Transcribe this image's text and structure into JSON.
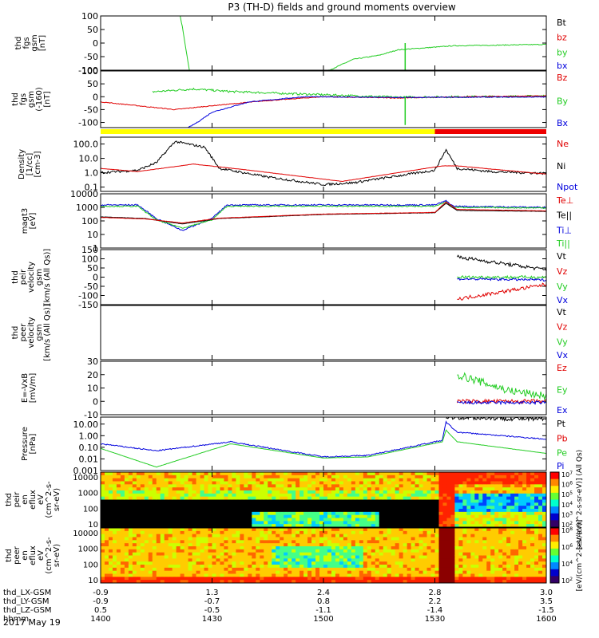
{
  "title": "P3 (TH-D) fields and ground moments overview",
  "colors": {
    "black": "#000000",
    "red": "#e00000",
    "green": "#22cc22",
    "blue": "#0000dd",
    "yellow": "#ffff00",
    "barred": "#ee0000"
  },
  "chart_data": {
    "type": "line",
    "time_axis": {
      "ticks_hhmm": [
        "1400",
        "1430",
        "1500",
        "1530",
        "1600"
      ],
      "date": "2017 May 19",
      "range_hhmm": [
        "1400",
        "1600"
      ],
      "ephemeris": [
        {
          "label": "thd_LX-GSM",
          "values": [
            "-0.9",
            "1.3",
            "2.4",
            "2.8",
            "3.0"
          ]
        },
        {
          "label": "thd_LY-GSM",
          "values": [
            "-0.9",
            "-0.7",
            "0.8",
            "2.2",
            "3.5"
          ]
        },
        {
          "label": "thd_LZ-GSM",
          "values": [
            "0.5",
            "-0.5",
            "-1.1",
            "-1.4",
            "-1.5"
          ]
        },
        {
          "label": "hhmm",
          "values": [
            "1400",
            "1430",
            "1500",
            "1530",
            "1600"
          ]
        }
      ]
    },
    "panels": [
      {
        "id": "fgs-gsm",
        "ylabel": [
          "thd",
          "fgs",
          "gsm",
          "[nT]"
        ],
        "ylim": [
          -100,
          100
        ],
        "yticks": [
          "100",
          "50",
          "0",
          "-50",
          "-100"
        ],
        "series": [
          {
            "name": "Bt",
            "color": "black"
          },
          {
            "name": "bz",
            "color": "red"
          },
          {
            "name": "by",
            "color": "green"
          },
          {
            "name": "bx",
            "color": "blue"
          }
        ]
      },
      {
        "id": "fgs-gse",
        "ylabel": [
          "thd",
          "fgs",
          "gsm",
          "(-160)",
          "[nT]"
        ],
        "ylim": [
          -120,
          100
        ],
        "yticks": [
          "100",
          "50",
          "0",
          "-50",
          "-100"
        ],
        "series": [
          {
            "name": "Bz",
            "color": "red"
          },
          {
            "name": "By",
            "color": "green"
          },
          {
            "name": "Bx",
            "color": "blue"
          }
        ]
      },
      {
        "id": "density",
        "ylabel": [
          "Density",
          "[1/cc]",
          "[cm-3]"
        ],
        "log": true,
        "ylim": [
          0.05,
          300
        ],
        "yticks": [
          "100.0",
          "10.0",
          "1.0",
          "0.1"
        ],
        "series": [
          {
            "name": "Ne",
            "color": "red"
          },
          {
            "name": "Ni",
            "color": "black"
          },
          {
            "name": "Npot",
            "color": "blue"
          }
        ]
      },
      {
        "id": "temperature",
        "ylabel": [
          "magt3",
          "[eV]"
        ],
        "log": true,
        "ylim": [
          1,
          10000
        ],
        "yticks": [
          "10000",
          "1000",
          "100",
          "10",
          "1"
        ],
        "series": [
          {
            "name": "Te⊥",
            "color": "red"
          },
          {
            "name": "Te||",
            "color": "black"
          },
          {
            "name": "Ti⊥",
            "color": "blue"
          },
          {
            "name": "Ti||",
            "color": "green"
          }
        ]
      },
      {
        "id": "peir-velocity",
        "ylabel": [
          "thd",
          "peir",
          "velocity",
          "gsm",
          "[km/s (All Qs)]"
        ],
        "ylim": [
          -150,
          150
        ],
        "yticks": [
          "150",
          "100",
          "50",
          "0",
          "-50",
          "-100",
          "-150"
        ],
        "series": [
          {
            "name": "Vt",
            "color": "black"
          },
          {
            "name": "Vz",
            "color": "red"
          },
          {
            "name": "Vy",
            "color": "green"
          },
          {
            "name": "Vx",
            "color": "blue"
          }
        ]
      },
      {
        "id": "peer-velocity",
        "ylabel": [
          "thd",
          "peer",
          "velocity",
          "gsm",
          "[km/s (All Qs)]"
        ],
        "ylim": [
          0,
          1
        ],
        "yticks": [],
        "series": [
          {
            "name": "Vt",
            "color": "black"
          },
          {
            "name": "Vz",
            "color": "red"
          },
          {
            "name": "Vy",
            "color": "green"
          },
          {
            "name": "Vx",
            "color": "blue"
          }
        ]
      },
      {
        "id": "efield",
        "ylabel": [
          "E=-VxB",
          "[mV/m]"
        ],
        "ylim": [
          -10,
          30
        ],
        "yticks": [
          "30",
          "20",
          "10",
          "0",
          "-10"
        ],
        "series": [
          {
            "name": "Ez",
            "color": "red"
          },
          {
            "name": "Ey",
            "color": "green"
          },
          {
            "name": "Ex",
            "color": "blue"
          }
        ]
      },
      {
        "id": "pressure",
        "ylabel": [
          "Pressure",
          "[nPa]"
        ],
        "log": true,
        "ylim": [
          0.001,
          40
        ],
        "yticks": [
          "10.00",
          "1.00",
          "0.10",
          "0.01",
          "0.001"
        ],
        "series": [
          {
            "name": "Pt",
            "color": "black"
          },
          {
            "name": "Pb",
            "color": "red"
          },
          {
            "name": "Pe",
            "color": "green"
          },
          {
            "name": "Pi",
            "color": "blue"
          }
        ]
      },
      {
        "id": "peir-spectrogram",
        "type": "heatmap",
        "ylabel": [
          "thd",
          "peir",
          "en",
          "eflux",
          "eV",
          "(cm^2-s-",
          "sr-eV)"
        ],
        "yticks": [
          "10000",
          "1000",
          "100",
          "10"
        ],
        "colorbar": {
          "ticks": [
            "10^7",
            "10^6",
            "10^5",
            "10^4",
            "10^3",
            "10^2"
          ],
          "label": "[eV/(cm^2-s-sr-eV)] (All Qs)"
        }
      },
      {
        "id": "peer-spectrogram",
        "type": "heatmap",
        "ylabel": [
          "thd",
          "peer",
          "en",
          "eflux",
          "eV",
          "(cm^2-s-",
          "sr-eV)"
        ],
        "yticks": [
          "10000",
          "1000",
          "100",
          "10"
        ],
        "colorbar": {
          "ticks": [
            "10^8",
            "10^6",
            "10^4",
            "10^2"
          ],
          "label": "[eV/(cm^2-s-sr-eV)]"
        }
      }
    ],
    "mode_bar": [
      {
        "from": "1400",
        "to": "1530",
        "color": "yellow"
      },
      {
        "from": "1530",
        "to": "1600",
        "color": "barred"
      }
    ]
  }
}
